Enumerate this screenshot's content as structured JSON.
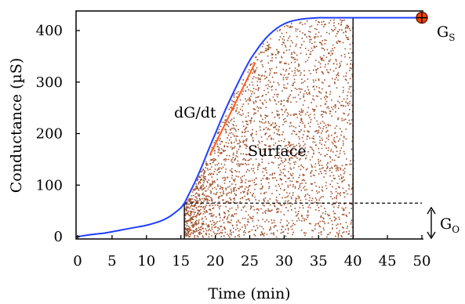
{
  "chart_data": {
    "type": "line",
    "title": "",
    "xlabel": "Time (min)",
    "ylabel": "Conductance (µS)",
    "xlim": [
      0,
      50
    ],
    "ylim": [
      0,
      450
    ],
    "x_ticks": [
      0,
      5,
      10,
      15,
      20,
      25,
      30,
      35,
      40,
      45,
      50
    ],
    "x_tick_labels": [
      "0",
      "5",
      "10",
      "15",
      "20",
      "25",
      "30",
      "35",
      "40",
      "45",
      "50"
    ],
    "y_ticks": [
      0,
      100,
      200,
      300,
      400
    ],
    "y_tick_labels": [
      "0",
      "100",
      "200",
      "300",
      "400"
    ],
    "grid": false,
    "series": [
      {
        "color": "#1f3fff",
        "x": [
          0,
          2,
          4,
          6,
          8,
          10,
          12,
          13,
          14,
          15,
          15.5,
          16,
          17,
          18,
          19,
          20,
          21,
          22,
          23,
          24,
          25,
          26,
          27,
          28,
          29,
          30,
          31,
          32,
          33,
          34,
          35,
          36,
          38,
          40,
          45,
          50
        ],
        "y": [
          0,
          4,
          7,
          12,
          17,
          22,
          30,
          36,
          45,
          56,
          65,
          78,
          105,
          135,
          168,
          200,
          232,
          262,
          290,
          317,
          342,
          362,
          380,
          394,
          405,
          413,
          418,
          421,
          423,
          424,
          425,
          425,
          425,
          425,
          425,
          425
        ]
      }
    ],
    "annotations": {
      "slope_label": "dG/dt",
      "slope_segment": {
        "x": [
          19.2,
          25.8
        ],
        "y": [
          158,
          338
        ],
        "color": "#ff5a1e"
      },
      "area_label": "Surface",
      "area_x_range": [
        15.5,
        40
      ],
      "baseline_value": 65,
      "baseline_label": "G",
      "baseline_label_sub": "O",
      "saturation_label": "G",
      "saturation_label_sub": "S",
      "saturation_point": {
        "x": 50,
        "y": 425
      },
      "area_color": "#a0522d",
      "marker_color": "#ff4500"
    }
  }
}
